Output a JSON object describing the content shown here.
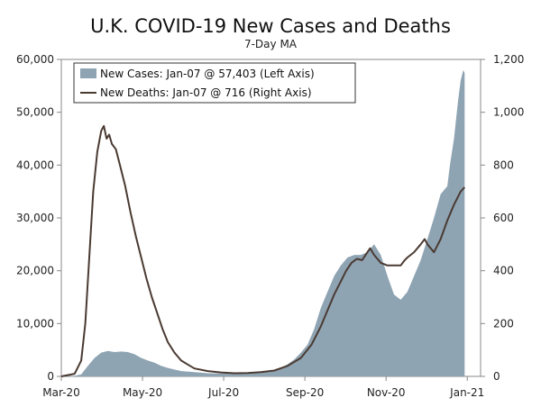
{
  "chart_data": {
    "type": "area+line",
    "title": "U.K. COVID-19 New Cases and Deaths",
    "subtitle": "7-Day MA",
    "x_ticks": [
      "Mar-20",
      "May-20",
      "Jul-20",
      "Sep-20",
      "Nov-20",
      "Jan-21"
    ],
    "left_axis": {
      "ylim": [
        0,
        60000
      ],
      "ticks": [
        "0",
        "10,000",
        "20,000",
        "30,000",
        "40,000",
        "50,000",
        "60,000"
      ]
    },
    "right_axis": {
      "ylim": [
        0,
        1200
      ],
      "ticks": [
        "0",
        "200",
        "400",
        "600",
        "800",
        "1,000",
        "1,200"
      ]
    },
    "x_range_days": [
      0,
      315
    ],
    "series": [
      {
        "name": "New Cases: Jan-07 @ 57,403 (Left Axis)",
        "kind": "area",
        "axis": "left",
        "color": "#8fa4b3",
        "points": [
          [
            0,
            0
          ],
          [
            10,
            100
          ],
          [
            15,
            400
          ],
          [
            20,
            2000
          ],
          [
            25,
            3500
          ],
          [
            30,
            4500
          ],
          [
            35,
            4800
          ],
          [
            40,
            4600
          ],
          [
            45,
            4700
          ],
          [
            50,
            4600
          ],
          [
            55,
            4200
          ],
          [
            60,
            3500
          ],
          [
            65,
            3000
          ],
          [
            70,
            2600
          ],
          [
            75,
            2000
          ],
          [
            80,
            1600
          ],
          [
            90,
            1000
          ],
          [
            100,
            800
          ],
          [
            110,
            600
          ],
          [
            120,
            550
          ],
          [
            130,
            600
          ],
          [
            140,
            700
          ],
          [
            150,
            900
          ],
          [
            160,
            1200
          ],
          [
            165,
            1600
          ],
          [
            170,
            2300
          ],
          [
            175,
            3200
          ],
          [
            180,
            4500
          ],
          [
            185,
            6000
          ],
          [
            190,
            9000
          ],
          [
            195,
            13000
          ],
          [
            200,
            16000
          ],
          [
            205,
            19000
          ],
          [
            210,
            21000
          ],
          [
            215,
            22500
          ],
          [
            220,
            23000
          ],
          [
            225,
            23000
          ],
          [
            230,
            23500
          ],
          [
            235,
            25000
          ],
          [
            240,
            23000
          ],
          [
            245,
            19000
          ],
          [
            250,
            15500
          ],
          [
            255,
            14500
          ],
          [
            260,
            16000
          ],
          [
            265,
            19000
          ],
          [
            270,
            22000
          ],
          [
            275,
            26000
          ],
          [
            280,
            30000
          ],
          [
            285,
            34500
          ],
          [
            290,
            36000
          ],
          [
            292,
            40000
          ],
          [
            295,
            45000
          ],
          [
            298,
            52000
          ],
          [
            300,
            56000
          ],
          [
            302,
            58000
          ],
          [
            303,
            57403
          ]
        ]
      },
      {
        "name": "New Deaths: Jan-07 @ 716 (Right Axis)",
        "kind": "line",
        "axis": "right",
        "color": "#4a3a32",
        "points": [
          [
            0,
            0
          ],
          [
            10,
            10
          ],
          [
            15,
            60
          ],
          [
            18,
            200
          ],
          [
            21,
            450
          ],
          [
            24,
            700
          ],
          [
            27,
            850
          ],
          [
            30,
            930
          ],
          [
            32,
            948
          ],
          [
            34,
            900
          ],
          [
            36,
            915
          ],
          [
            38,
            880
          ],
          [
            41,
            860
          ],
          [
            44,
            800
          ],
          [
            48,
            720
          ],
          [
            52,
            620
          ],
          [
            56,
            530
          ],
          [
            60,
            450
          ],
          [
            64,
            370
          ],
          [
            68,
            300
          ],
          [
            72,
            240
          ],
          [
            76,
            180
          ],
          [
            80,
            130
          ],
          [
            85,
            90
          ],
          [
            90,
            60
          ],
          [
            95,
            45
          ],
          [
            100,
            30
          ],
          [
            110,
            20
          ],
          [
            120,
            15
          ],
          [
            130,
            12
          ],
          [
            140,
            13
          ],
          [
            150,
            16
          ],
          [
            160,
            22
          ],
          [
            170,
            40
          ],
          [
            180,
            70
          ],
          [
            188,
            120
          ],
          [
            195,
            190
          ],
          [
            200,
            250
          ],
          [
            205,
            310
          ],
          [
            210,
            360
          ],
          [
            214,
            400
          ],
          [
            218,
            430
          ],
          [
            222,
            445
          ],
          [
            226,
            440
          ],
          [
            230,
            470
          ],
          [
            232,
            485
          ],
          [
            235,
            460
          ],
          [
            240,
            430
          ],
          [
            245,
            420
          ],
          [
            250,
            420
          ],
          [
            255,
            420
          ],
          [
            258,
            440
          ],
          [
            260,
            450
          ],
          [
            265,
            470
          ],
          [
            270,
            500
          ],
          [
            273,
            520
          ],
          [
            275,
            500
          ],
          [
            280,
            470
          ],
          [
            285,
            520
          ],
          [
            290,
            590
          ],
          [
            295,
            650
          ],
          [
            300,
            700
          ],
          [
            303,
            716
          ]
        ]
      }
    ]
  }
}
